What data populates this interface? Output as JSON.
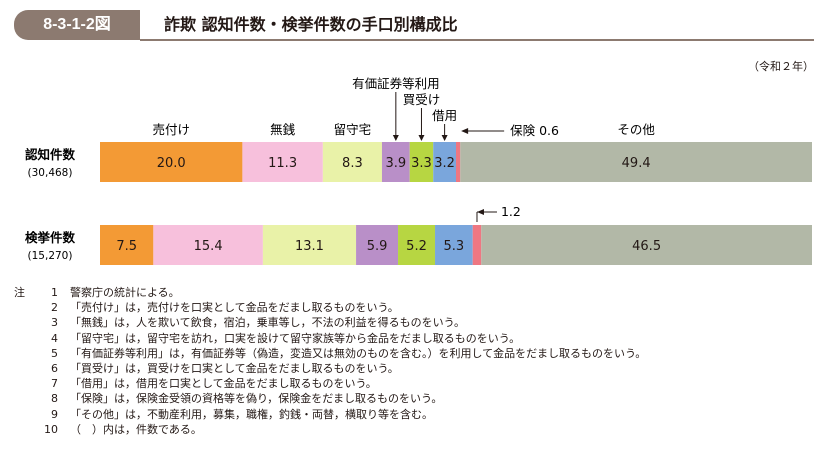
{
  "header": {
    "figure_number": "8-3-1-2図",
    "title": "詐欺 認知件数・検挙件数の手口別構成比"
  },
  "year_note": "（令和２年）",
  "colors": {
    "header_band": "#8c7a70",
    "categories": [
      "#f39a35",
      "#f7c0dc",
      "#e9f2a8",
      "#b98fc8",
      "#b7d642",
      "#7aa6dc",
      "#ee7782",
      "#b2b8a7"
    ]
  },
  "chart_data": {
    "type": "bar",
    "stacked": "100%",
    "orientation": "horizontal",
    "title": "詐欺 認知件数・検挙件数の手口別構成比",
    "categories": [
      "売付け",
      "無銭",
      "留守宅",
      "有価証券等利用",
      "買受け",
      "借用",
      "保険",
      "その他"
    ],
    "series": [
      {
        "name": "認知件数",
        "count_label": "(30,468)",
        "values": [
          20.0,
          11.3,
          8.3,
          3.9,
          3.3,
          3.2,
          0.6,
          49.4
        ],
        "labels": [
          "20.0",
          "11.3",
          "8.3",
          "3.9",
          "3.3",
          "3.2",
          "0.6",
          "49.4"
        ]
      },
      {
        "name": "検挙件数",
        "count_label": "(15,270)",
        "values": [
          7.5,
          15.4,
          13.1,
          5.9,
          5.2,
          5.3,
          1.2,
          46.5
        ],
        "labels": [
          "7.5",
          "15.4",
          "13.1",
          "5.9",
          "5.2",
          "5.3",
          "1.2",
          "46.5"
        ]
      }
    ]
  },
  "notes": {
    "prefix": "注",
    "items": [
      {
        "num": "1",
        "text": "警察庁の統計による。"
      },
      {
        "num": "2",
        "text": "「売付け」は，売付けを口実として金品をだまし取るものをいう。"
      },
      {
        "num": "3",
        "text": "「無銭」は，人を欺いて飲食，宿泊，乗車等し，不法の利益を得るものをいう。"
      },
      {
        "num": "4",
        "text": "「留守宅」は，留守宅を訪れ，口実を設けて留守家族等から金品をだまし取るものをいう。"
      },
      {
        "num": "5",
        "text": "「有価証券等利用」は，有価証券等（偽造，変造又は無効のものを含む。）を利用して金品をだまし取るものをいう。"
      },
      {
        "num": "6",
        "text": "「買受け」は，買受けを口実として金品をだまし取るものをいう。"
      },
      {
        "num": "7",
        "text": "「借用」は，借用を口実として金品をだまし取るものをいう。"
      },
      {
        "num": "8",
        "text": "「保険」は，保険金受領の資格等を偽り，保険金をだまし取るものをいう。"
      },
      {
        "num": "9",
        "text": "「その他」は，不動産利用，募集，職権，釣銭・両替，横取り等を含む。"
      },
      {
        "num": "10",
        "text": "（　）内は，件数である。"
      }
    ]
  }
}
